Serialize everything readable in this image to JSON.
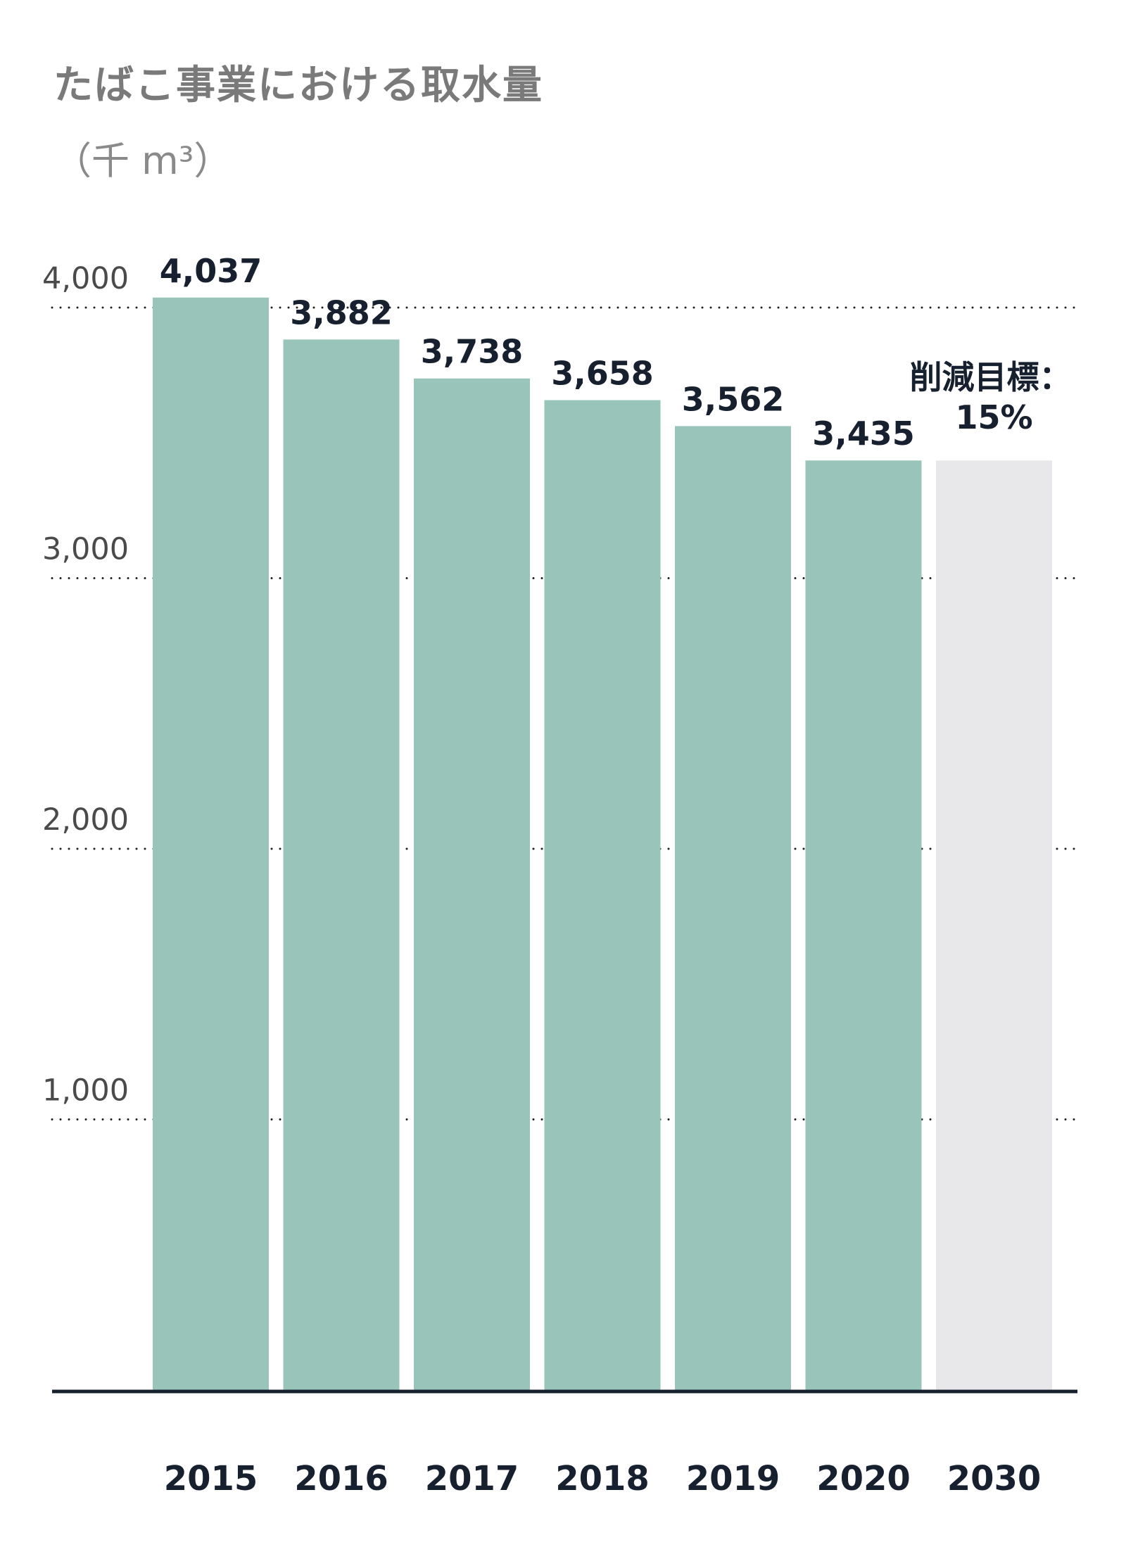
{
  "chart_data": {
    "type": "bar",
    "title": "たばこ事業における取水量",
    "unit": "（千 m³）",
    "categories": [
      "2015",
      "2016",
      "2017",
      "2018",
      "2019",
      "2020",
      "2030"
    ],
    "values": [
      4037,
      3882,
      3738,
      3658,
      3562,
      3435,
      3435
    ],
    "value_labels": [
      "4,037",
      "3,882",
      "3,738",
      "3,658",
      "3,562",
      "3,435",
      ""
    ],
    "ylim": [
      0,
      4000
    ],
    "yticks": [
      1000,
      2000,
      3000,
      4000
    ],
    "ytick_labels": [
      "1,000",
      "2,000",
      "3,000",
      "4,000"
    ],
    "grid": true,
    "target_annotation": [
      "削減目標：",
      "15%"
    ],
    "colors": {
      "actual": "#99c4b9",
      "target": "#e8e8ea",
      "text": "#16202e",
      "axis": "#16202e",
      "grid": "#222222"
    }
  }
}
